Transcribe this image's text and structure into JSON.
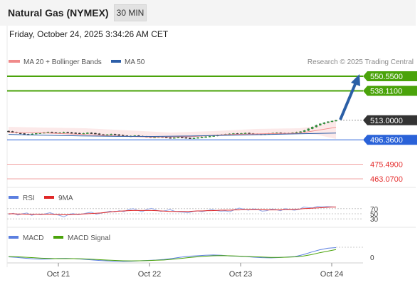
{
  "header": {
    "title": "Natural Gas (NYMEX)",
    "timeframe_button": "30 MIN"
  },
  "datetime": "Friday, October 24, 2025 3:34:26 AM CET",
  "legend": {
    "ma20_bb": "MA 20 + Bollinger Bands",
    "ma50": "MA 50",
    "copyright": "Research © 2025 Trading Central"
  },
  "colors": {
    "green_level": "#4aa30a",
    "blue_level": "#2a62d8",
    "red_level": "#e52f2f",
    "current_price": "#333333",
    "arrow": "#2b5fa6",
    "ma20": "#f08a8a",
    "ma50": "#2c5ea8",
    "rsi": "#5b7fe0",
    "rsi_ma": "#e02828",
    "macd": "#5b7fe0",
    "macd_signal": "#4aa30a"
  },
  "chart_data": [
    {
      "type": "candlestick",
      "title": "Natural Gas (NYMEX)",
      "x_ticks": [
        "Oct 21",
        "Oct 22",
        "Oct 23",
        "Oct 24"
      ],
      "price_levels": [
        {
          "label": "550.5500",
          "value": 550.55,
          "kind": "resistance"
        },
        {
          "label": "538.1100",
          "value": 538.11,
          "kind": "resistance"
        },
        {
          "label": "513.0000",
          "value": 513.0,
          "kind": "current"
        },
        {
          "label": "496.3600",
          "value": 496.36,
          "kind": "pivot"
        },
        {
          "label": "475.4900",
          "value": 475.49,
          "kind": "support"
        },
        {
          "label": "463.0700",
          "value": 463.07,
          "kind": "support"
        }
      ],
      "close": [
        503.5,
        502.8,
        502.2,
        501.7,
        501.1,
        500.9,
        501.4,
        502.0,
        502.2,
        502.6,
        502.9,
        502.6,
        502.2,
        502.4,
        502.8,
        502.6,
        502.3,
        502.0,
        501.6,
        501.9,
        502.3,
        502.0,
        501.6,
        500.9,
        500.4,
        500.8,
        501.2,
        500.8,
        500.4,
        499.9,
        499.3,
        499.6,
        499.9,
        499.5,
        499.2,
        498.9,
        498.5,
        498.6,
        498.9,
        498.6,
        498.2,
        497.9,
        498.2,
        498.5,
        498.3,
        497.9,
        497.6,
        497.9,
        498.3,
        498.7,
        499.0,
        499.4,
        499.8,
        500.3,
        500.7,
        501.1,
        501.4,
        501.7,
        501.5,
        501.8,
        502.1,
        501.7,
        501.4,
        501.2,
        500.9,
        501.3,
        501.7,
        502.1,
        502.3,
        502.0,
        501.7,
        502.0,
        502.4,
        502.8,
        503.3,
        504.3,
        505.8,
        507.3,
        508.8,
        510.0,
        511.0,
        511.8,
        512.4,
        513.0
      ],
      "ma50": [
        501.0,
        500.3,
        499.7,
        499.3,
        499.2,
        499.6,
        500.2,
        500.8,
        501.5,
        502.1
      ],
      "ma20_bollinger_mid": [
        502.5,
        502.2,
        501.0,
        499.5,
        498.6,
        499.0,
        500.8,
        501.5,
        502.0,
        507.0
      ]
    },
    {
      "type": "line",
      "title": "RSI",
      "series": [
        {
          "name": "RSI"
        },
        {
          "name": "9MA"
        }
      ],
      "levels": [
        70,
        50,
        30
      ],
      "rsi": [
        47,
        52,
        45,
        50,
        53,
        44,
        49,
        46,
        50,
        54,
        48,
        44,
        38,
        47,
        51,
        46,
        49,
        53,
        56,
        48,
        52,
        56,
        60,
        57,
        62,
        58,
        66,
        70,
        63,
        58,
        67,
        71,
        64,
        59,
        62,
        66,
        60,
        57,
        56,
        54,
        59,
        61,
        58,
        62,
        66,
        63,
        60,
        61,
        58,
        66,
        72,
        68,
        64,
        69,
        67,
        60,
        62,
        68,
        66,
        62,
        70,
        66,
        64,
        67,
        76,
        74,
        73,
        79,
        77,
        78,
        77,
        76
      ],
      "rsi_ma": [
        50,
        50,
        49,
        49,
        48,
        48,
        48,
        48,
        48,
        48,
        47,
        47,
        46,
        46,
        47,
        48,
        49,
        50,
        51,
        52,
        53,
        55,
        57,
        59,
        60,
        61,
        62,
        63,
        63,
        63,
        63,
        63,
        62,
        61,
        60,
        59,
        59,
        59,
        59,
        59,
        60,
        61,
        61,
        62,
        62,
        63,
        64,
        64,
        64,
        65,
        65,
        66,
        66,
        66,
        66,
        66,
        65,
        65,
        65,
        65,
        66,
        66,
        67,
        68,
        70,
        71,
        72,
        73,
        74,
        75,
        76,
        76
      ]
    },
    {
      "type": "line",
      "title": "MACD",
      "series": [
        {
          "name": "MACD"
        },
        {
          "name": "MACD Signal"
        }
      ],
      "levels": [
        0
      ],
      "macd": [
        0.1,
        -0.05,
        -0.3,
        -0.5,
        -0.6,
        -0.55,
        -0.4,
        -0.35,
        -0.45,
        -0.6,
        -0.8,
        -1.0,
        -1.15,
        -1.25,
        -1.3,
        -1.25,
        -1.1,
        -1.0,
        -0.9,
        -0.7,
        -0.4,
        0.0,
        0.3,
        0.45,
        0.6,
        0.7,
        0.6,
        0.4,
        0.3,
        0.2,
        0.0,
        -0.15,
        -0.2,
        -0.1,
        0.05,
        0.2,
        0.8,
        1.6,
        2.3,
        2.8,
        3.0
      ],
      "signal": [
        0.2,
        0.15,
        0.0,
        -0.15,
        -0.3,
        -0.4,
        -0.45,
        -0.45,
        -0.45,
        -0.5,
        -0.6,
        -0.75,
        -0.9,
        -1.0,
        -1.1,
        -1.15,
        -1.1,
        -1.05,
        -0.95,
        -0.85,
        -0.65,
        -0.4,
        -0.1,
        0.1,
        0.3,
        0.45,
        0.5,
        0.45,
        0.35,
        0.25,
        0.15,
        0.05,
        -0.05,
        -0.05,
        0.0,
        0.1,
        0.35,
        0.8,
        1.4,
        1.9,
        2.4
      ]
    }
  ]
}
